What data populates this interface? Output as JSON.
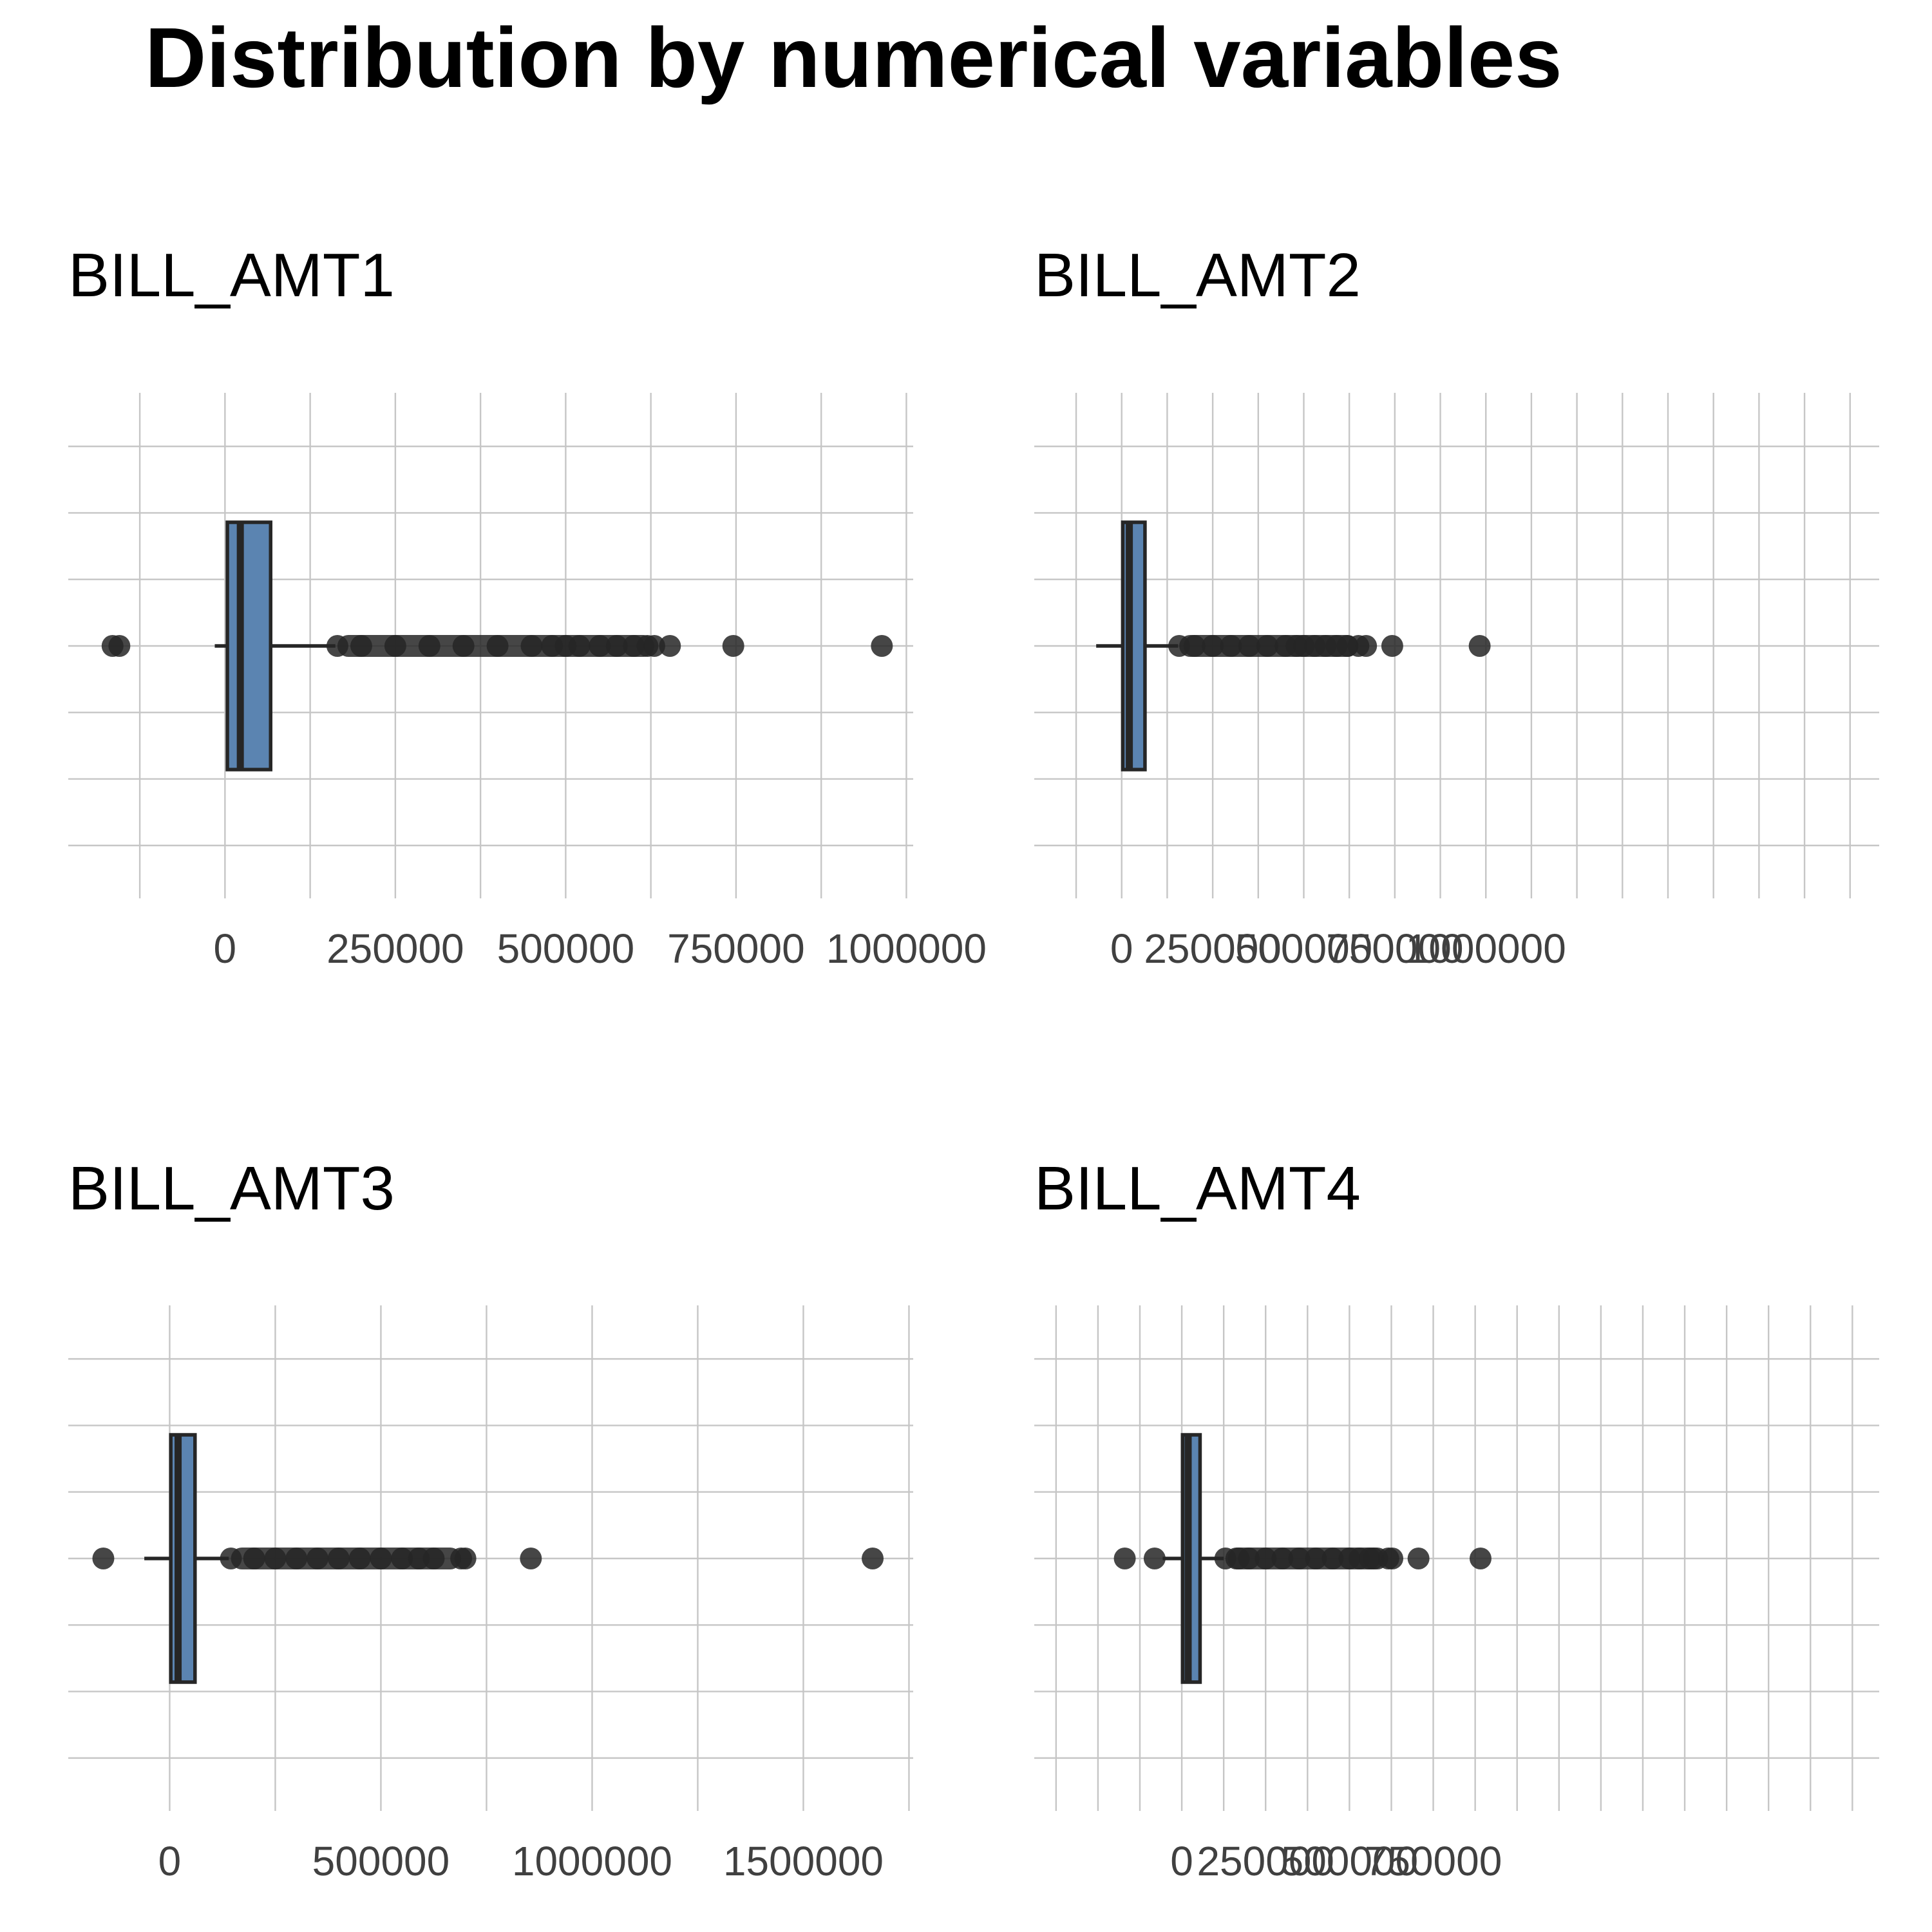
{
  "title": "Distribution by numerical variables",
  "colors": {
    "box_fill": "#5b84b1",
    "box_outline": "#262626",
    "grid": "#c6c6c6",
    "tick_text": "#404040",
    "background": "#ffffff"
  },
  "chart_data": [
    {
      "type": "boxplot",
      "title": "BILL_AMT1",
      "xlabel": "",
      "ylabel": "",
      "xlim": [
        -230000,
        1010000
      ],
      "grid": true,
      "ticks": [
        0,
        250000,
        500000,
        750000,
        1000000
      ],
      "tick_labels": [
        "0",
        "250000",
        "500000",
        "750000",
        "1000000"
      ],
      "stats": {
        "min": -15000,
        "q1": 3500,
        "median": 22500,
        "q3": 67000,
        "max": 162000
      },
      "outliers": [
        -165000,
        -155000,
        165000,
        200000,
        250000,
        300000,
        350000,
        400000,
        450000,
        480000,
        500000,
        520000,
        550000,
        575000,
        600000,
        620000,
        630000,
        653000,
        746000,
        964000
      ]
    },
    {
      "type": "boxplot",
      "title": "BILL_AMT2",
      "xlabel": "",
      "ylabel": "",
      "xlim": [
        -240000,
        2080000
      ],
      "grid": true,
      "ticks": [
        0,
        250000,
        500000,
        750000,
        1000000
      ],
      "tick_labels": [
        "0",
        "250000",
        "500000",
        "750000",
        "1000000"
      ],
      "stats": {
        "min": -70000,
        "q1": 3000,
        "median": 21000,
        "q3": 64000,
        "max": 155000
      },
      "outliers": [
        158000,
        200000,
        250000,
        300000,
        350000,
        400000,
        450000,
        480000,
        500000,
        530000,
        560000,
        590000,
        620000,
        650000,
        671000,
        743000,
        983000
      ]
    },
    {
      "type": "boxplot",
      "title": "BILL_AMT3",
      "xlabel": "",
      "ylabel": "",
      "xlim": [
        -240000,
        1760000
      ],
      "grid": true,
      "ticks": [
        0,
        500000,
        1000000,
        1500000
      ],
      "tick_labels": [
        "0",
        "500000",
        "1000000",
        "1500000"
      ],
      "stats": {
        "min": -60000,
        "q1": 2700,
        "median": 20000,
        "q3": 60000,
        "max": 140000
      },
      "outliers": [
        -157000,
        145000,
        200000,
        250000,
        300000,
        350000,
        400000,
        450000,
        500000,
        550000,
        590000,
        625000,
        690000,
        700000,
        855000,
        1664000
      ]
    },
    {
      "type": "boxplot",
      "title": "BILL_AMT4",
      "xlabel": "",
      "ylabel": "",
      "xlim": [
        -440000,
        2080000
      ],
      "grid": true,
      "ticks": [
        0,
        250000,
        500000,
        750000
      ],
      "tick_labels": [
        "0",
        "250000",
        "500000",
        "750000"
      ],
      "stats": {
        "min": -57000,
        "q1": 2300,
        "median": 19000,
        "q3": 54500,
        "max": 125000
      },
      "outliers": [
        -170000,
        -81000,
        130000,
        170000,
        200000,
        250000,
        300000,
        350000,
        400000,
        450000,
        500000,
        530000,
        560000,
        572000,
        616000,
        628000,
        706000,
        891000
      ]
    }
  ]
}
